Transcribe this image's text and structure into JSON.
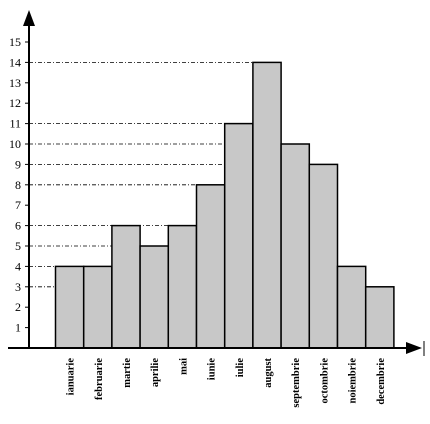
{
  "chart_data": {
    "type": "bar",
    "categories": [
      "ianuarie",
      "februarie",
      "martie",
      "aprilie",
      "mai",
      "iunie",
      "iulie",
      "august",
      "septembrie",
      "octombrie",
      "noiembrie",
      "decembrie"
    ],
    "values": [
      4,
      4,
      6,
      5,
      6,
      8,
      11,
      14,
      10,
      9,
      4,
      3
    ],
    "y_ticks": [
      "1",
      "2",
      "3",
      "4",
      "5",
      "6",
      "7",
      "8",
      "9",
      "10",
      "11",
      "12",
      "13",
      "14",
      "15"
    ],
    "ylim": [
      0,
      15
    ],
    "bar_color": "#c8c8c8",
    "line_color": "#000000",
    "guide_lines": "dash-dot, for the heights of the bars",
    "title": "",
    "xlabel": "",
    "ylabel": ""
  }
}
